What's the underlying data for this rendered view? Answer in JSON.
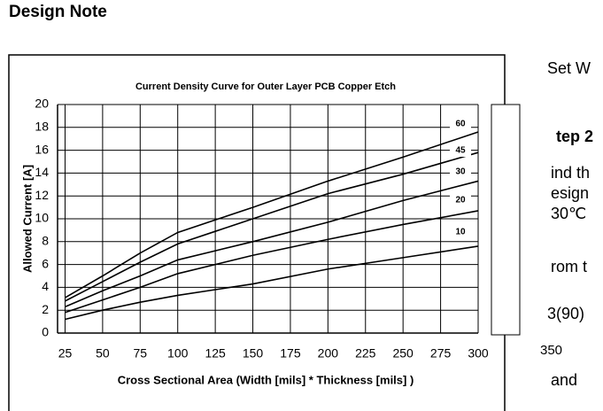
{
  "header": {
    "title": "Design Note"
  },
  "chart_data": {
    "type": "line",
    "title": "Current Density Curve for Outer Layer PCB Copper Etch",
    "x_label": "Cross Sectional Area (Width [mils] * Thickness [mils] )",
    "y_label": "Allowed Current [A]",
    "x": [
      25,
      50,
      75,
      100,
      125,
      150,
      200,
      250,
      300
    ],
    "series": [
      {
        "name": "60",
        "color": "#000000",
        "values": [
          3.1,
          5.0,
          7.0,
          8.8,
          9.9,
          11.0,
          13.3,
          15.4,
          17.6
        ]
      },
      {
        "name": "45",
        "color": "#000000",
        "values": [
          2.8,
          4.5,
          6.2,
          7.8,
          8.9,
          10.0,
          12.2,
          13.9,
          15.8
        ]
      },
      {
        "name": "30",
        "color": "#000000",
        "values": [
          2.3,
          3.7,
          5.0,
          6.4,
          7.2,
          8.0,
          9.7,
          11.6,
          13.3
        ]
      },
      {
        "name": "20",
        "color": "#000000",
        "values": [
          1.8,
          2.9,
          4.0,
          5.2,
          6.0,
          6.8,
          8.2,
          9.5,
          10.7
        ]
      },
      {
        "name": "10",
        "color": "#000000",
        "values": [
          1.2,
          2.0,
          2.7,
          3.3,
          3.8,
          4.3,
          5.6,
          6.6,
          7.6
        ]
      }
    ],
    "xlim": [
      20,
      300
    ],
    "xticks": [
      25,
      50,
      75,
      100,
      125,
      150,
      175,
      200,
      225,
      250,
      275,
      300
    ],
    "ylim": [
      0,
      20
    ],
    "yticks": [
      0,
      2,
      4,
      6,
      8,
      10,
      12,
      14,
      16,
      18,
      20
    ],
    "grid": true
  },
  "side_text": [
    "Set W",
    "tep 2",
    "ind th",
    "esign",
    "30℃",
    "rom t",
    "3(90)",
    "350",
    "and"
  ]
}
